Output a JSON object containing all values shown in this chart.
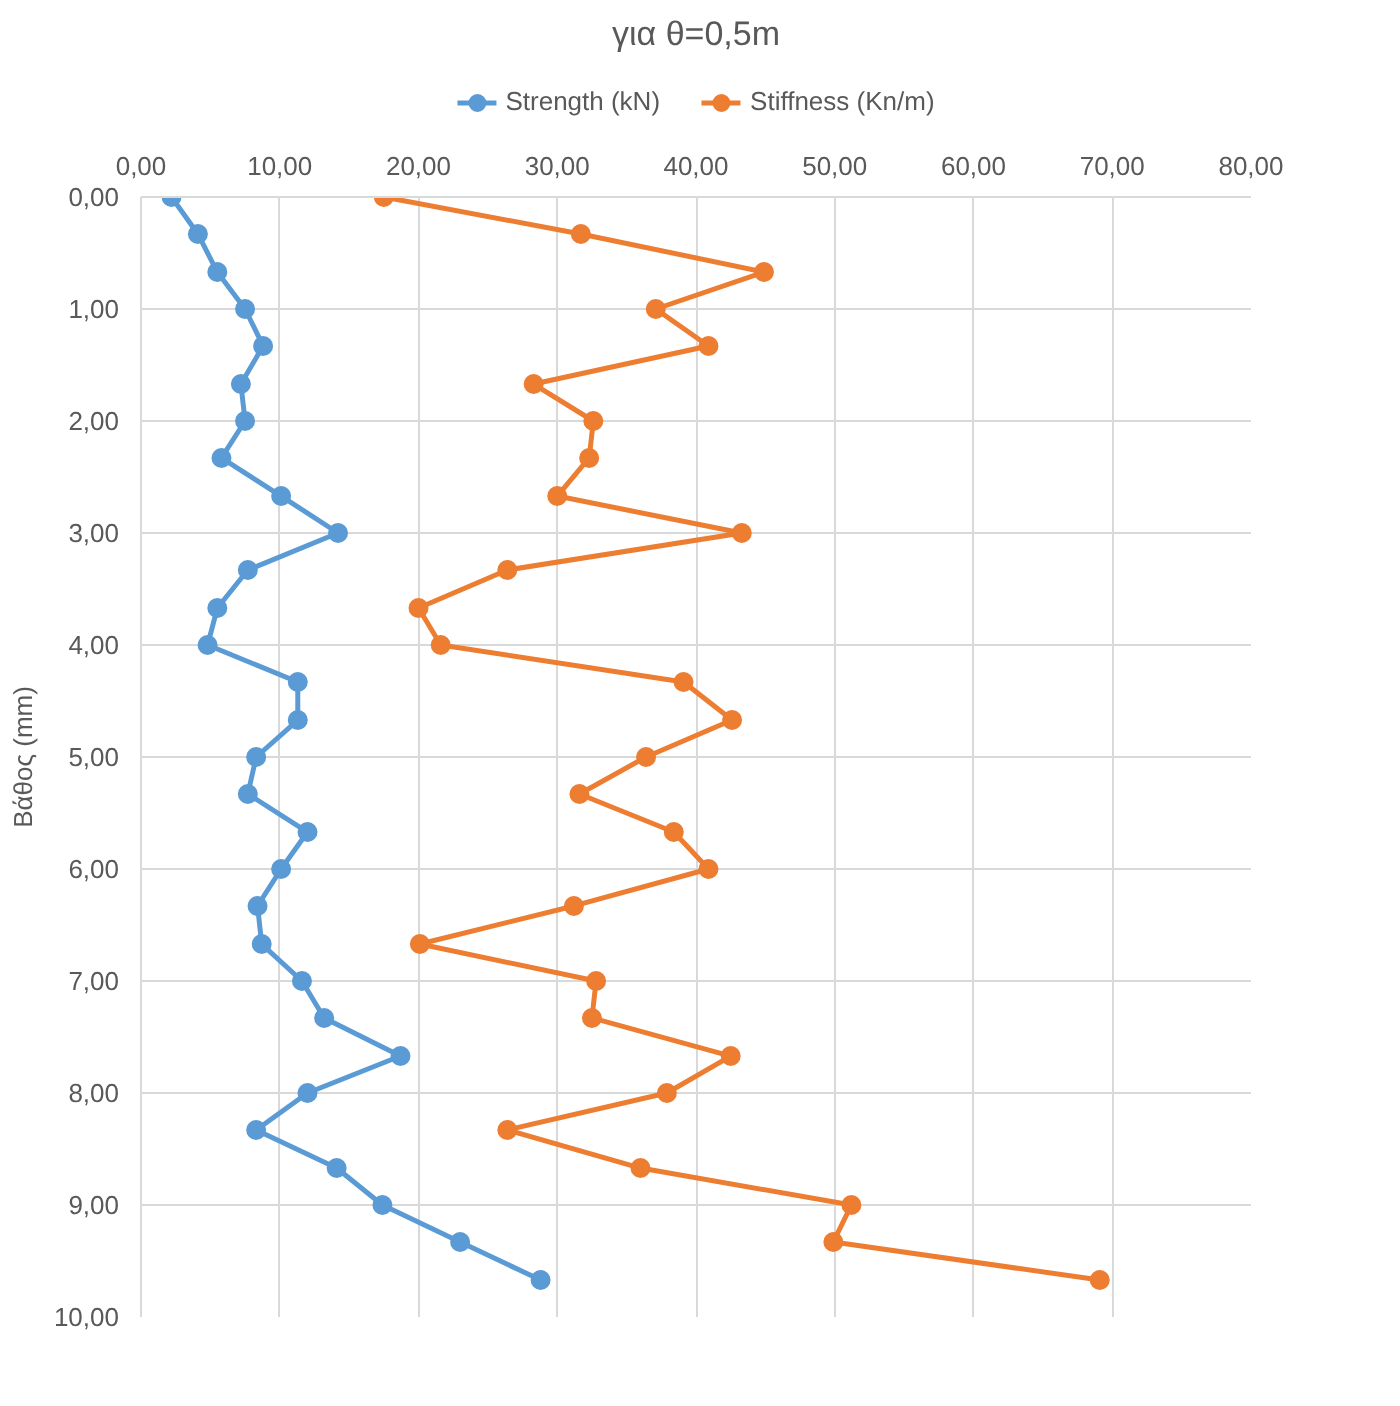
{
  "chart_data": {
    "type": "line",
    "title": "για θ=0,5m",
    "ylabel": "Βάθος (mm)",
    "xlim": [
      0,
      80
    ],
    "ylim": [
      10,
      0
    ],
    "xticks": [
      {
        "value": 0,
        "label": "0,00"
      },
      {
        "value": 10,
        "label": "10,00"
      },
      {
        "value": 20,
        "label": "20,00"
      },
      {
        "value": 30,
        "label": "30,00"
      },
      {
        "value": 40,
        "label": "40,00"
      },
      {
        "value": 50,
        "label": "50,00"
      },
      {
        "value": 60,
        "label": "60,00"
      },
      {
        "value": 70,
        "label": "70,00"
      },
      {
        "value": 80,
        "label": "80,00"
      }
    ],
    "yticks": [
      {
        "value": 0,
        "label": "0,00"
      },
      {
        "value": 1,
        "label": "1,00"
      },
      {
        "value": 2,
        "label": "2,00"
      },
      {
        "value": 3,
        "label": "3,00"
      },
      {
        "value": 4,
        "label": "4,00"
      },
      {
        "value": 5,
        "label": "5,00"
      },
      {
        "value": 6,
        "label": "6,00"
      },
      {
        "value": 7,
        "label": "7,00"
      },
      {
        "value": 8,
        "label": "8,00"
      },
      {
        "value": 9,
        "label": "9,00"
      },
      {
        "value": 10,
        "label": "10,00"
      }
    ],
    "grid": true,
    "legend": "top",
    "marker": "circle",
    "line_style": "solid",
    "series": [
      {
        "name": "Strength (kN)",
        "color": "#5b9bd5",
        "x": [
          2.2,
          4.1,
          5.5,
          7.5,
          8.8,
          7.2,
          7.5,
          5.8,
          10.1,
          14.2,
          7.7,
          5.5,
          4.8,
          11.3,
          11.3,
          8.3,
          7.7,
          12.0,
          10.1,
          8.4,
          8.7,
          11.6,
          13.2,
          18.7,
          12.0,
          8.3,
          14.1,
          17.4,
          23.0,
          28.8
        ],
        "values": [
          0,
          0.33,
          0.67,
          1.0,
          1.33,
          1.67,
          2.0,
          2.33,
          2.67,
          3.0,
          3.33,
          3.67,
          4.0,
          4.33,
          4.67,
          5.0,
          5.33,
          5.67,
          6.0,
          6.33,
          6.67,
          7.0,
          7.33,
          7.67,
          8.0,
          8.33,
          8.67,
          9.0,
          9.33,
          9.67
        ]
      },
      {
        "name": "Stiffness (Kn/m)",
        "color": "#ed7d31",
        "x": [
          17.5,
          31.7,
          44.9,
          37.1,
          40.9,
          28.3,
          32.6,
          32.3,
          30.0,
          43.3,
          26.4,
          20.0,
          21.6,
          39.1,
          42.6,
          36.4,
          31.6,
          38.4,
          40.9,
          31.2,
          20.1,
          32.8,
          32.5,
          42.5,
          37.9,
          26.4,
          36.0,
          51.2,
          49.9,
          69.1
        ],
        "values": [
          0,
          0.33,
          0.67,
          1.0,
          1.33,
          1.67,
          2.0,
          2.33,
          2.67,
          3.0,
          3.33,
          3.67,
          4.0,
          4.33,
          4.67,
          5.0,
          5.33,
          5.67,
          6.0,
          6.33,
          6.67,
          7.0,
          7.33,
          7.67,
          8.0,
          8.33,
          8.67,
          9.0,
          9.33,
          9.67
        ]
      }
    ]
  }
}
